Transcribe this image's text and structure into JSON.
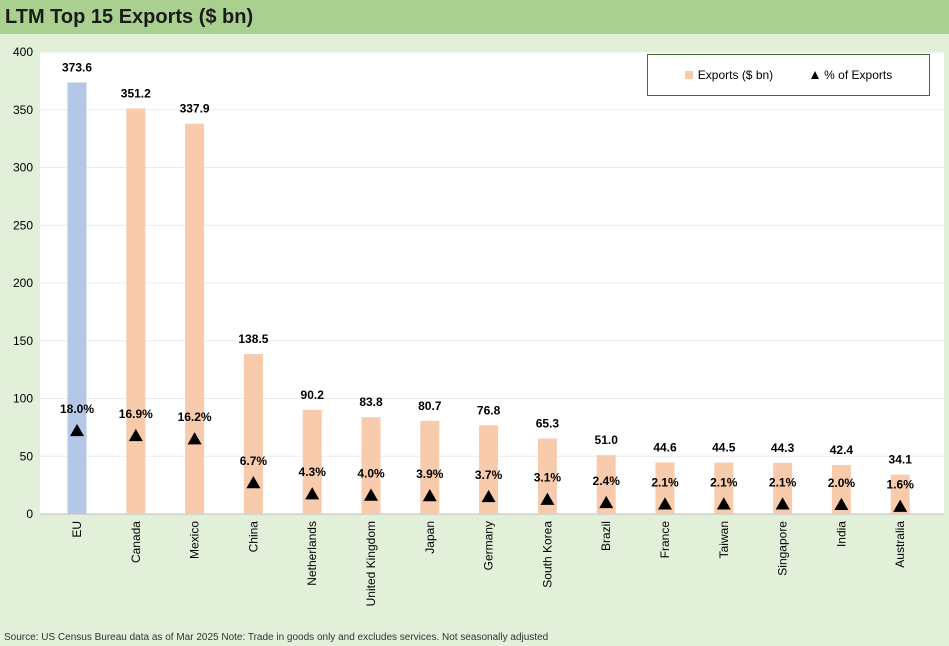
{
  "title": "LTM Top 15 Exports ($ bn)",
  "source": "Source: US Census Bureau data as of Mar 2025 Note: Trade in goods only and excludes services. Not seasonally adjusted",
  "legend": {
    "bar_label": "Exports ($ bn)",
    "marker_label": "% of Exports"
  },
  "colors": {
    "bar": "#f8cbad",
    "bar_highlight": "#b4c7e7",
    "marker": "#000000",
    "background": "#e2efd9",
    "title_bar": "#a9d08e"
  },
  "chart_data": {
    "type": "bar",
    "title": "LTM Top 15 Exports ($ bn)",
    "categories": [
      "EU",
      "Canada",
      "Mexico",
      "China",
      "Netherlands",
      "United Kingdom",
      "Japan",
      "Germany",
      "South Korea",
      "Brazil",
      "France",
      "Taiwan",
      "Singapore",
      "India",
      "Australia"
    ],
    "series": [
      {
        "name": "Exports ($ bn)",
        "values": [
          373.6,
          351.2,
          337.9,
          138.5,
          90.2,
          83.8,
          80.7,
          76.8,
          65.3,
          51.0,
          44.6,
          44.5,
          44.3,
          42.4,
          34.1
        ],
        "labels": [
          "373.6",
          "351.2",
          "337.9",
          "138.5",
          "90.2",
          "83.8",
          "80.7",
          "76.8",
          "65.3",
          "51.0",
          "44.6",
          "44.5",
          "44.3",
          "42.4",
          "34.1"
        ]
      },
      {
        "name": "% of Exports",
        "values": [
          18.0,
          16.9,
          16.2,
          6.7,
          4.3,
          4.0,
          3.9,
          3.7,
          3.1,
          2.4,
          2.1,
          2.1,
          2.1,
          2.0,
          1.6
        ],
        "labels": [
          "18.0%",
          "16.9%",
          "16.2%",
          "6.7%",
          "4.3%",
          "4.0%",
          "3.9%",
          "3.7%",
          "3.1%",
          "2.4%",
          "2.1%",
          "2.1%",
          "2.1%",
          "2.0%",
          "1.6%"
        ]
      }
    ],
    "highlight_category": "EU",
    "ylim": [
      0,
      400
    ],
    "yticks": [
      0,
      50,
      100,
      150,
      200,
      250,
      300,
      350,
      400
    ],
    "xlabel": "",
    "ylabel": "",
    "grid": true,
    "legend_position": "top-right"
  }
}
